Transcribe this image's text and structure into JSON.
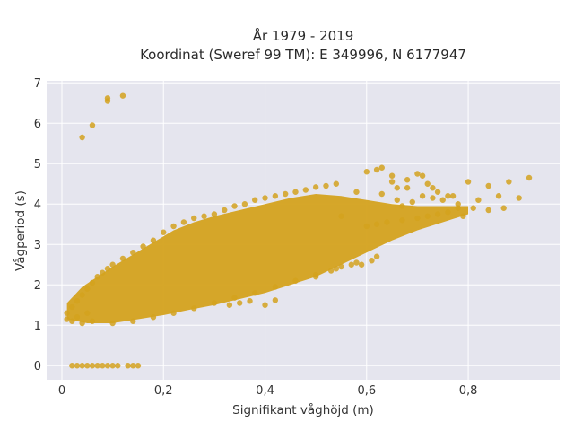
{
  "chart_data": {
    "type": "scatter",
    "title_line1": "År 1979 - 2019",
    "title_line2": "Koordinat (Sweref 99 TM): E 349996, N 6177947",
    "xlabel": "Signifikant våghöjd (m)",
    "ylabel": "Vågperiod (s)",
    "xlim": [
      -0.03,
      0.98
    ],
    "ylim": [
      -0.35,
      7.05
    ],
    "x_ticks": [
      0,
      0.2,
      0.4,
      0.6,
      0.8
    ],
    "x_tick_labels": [
      "0",
      "0,2",
      "0,4",
      "0,6",
      "0,8"
    ],
    "y_ticks": [
      0,
      1,
      2,
      3,
      4,
      5,
      6,
      7
    ],
    "y_tick_labels": [
      "0",
      "1",
      "2",
      "3",
      "4",
      "5",
      "6",
      "7"
    ],
    "grid": true,
    "colors": {
      "marker": "#D4A21E",
      "plot_bg": "#E5E5EE",
      "grid": "#FFFFFF"
    },
    "points": [
      [
        0.04,
        5.65
      ],
      [
        0.06,
        5.95
      ],
      [
        0.09,
        6.55
      ],
      [
        0.09,
        6.62
      ],
      [
        0.12,
        6.68
      ],
      [
        0.02,
        0
      ],
      [
        0.03,
        0
      ],
      [
        0.04,
        0
      ],
      [
        0.05,
        0
      ],
      [
        0.06,
        0
      ],
      [
        0.07,
        0
      ],
      [
        0.08,
        0
      ],
      [
        0.09,
        0
      ],
      [
        0.1,
        0
      ],
      [
        0.11,
        0
      ],
      [
        0.13,
        0
      ],
      [
        0.14,
        0
      ],
      [
        0.15,
        0
      ],
      [
        0.01,
        1.15
      ],
      [
        0.01,
        1.3
      ],
      [
        0.02,
        1.1
      ],
      [
        0.02,
        1.45
      ],
      [
        0.03,
        1.2
      ],
      [
        0.03,
        1.6
      ],
      [
        0.04,
        1.05
      ],
      [
        0.04,
        1.75
      ],
      [
        0.05,
        1.3
      ],
      [
        0.05,
        1.9
      ],
      [
        0.06,
        2.05
      ],
      [
        0.06,
        1.1
      ],
      [
        0.07,
        2.2
      ],
      [
        0.08,
        2.3
      ],
      [
        0.09,
        2.4
      ],
      [
        0.1,
        2.5
      ],
      [
        0.12,
        2.65
      ],
      [
        0.14,
        2.8
      ],
      [
        0.16,
        2.95
      ],
      [
        0.18,
        3.1
      ],
      [
        0.2,
        3.3
      ],
      [
        0.22,
        3.45
      ],
      [
        0.24,
        3.55
      ],
      [
        0.26,
        3.65
      ],
      [
        0.28,
        3.7
      ],
      [
        0.3,
        3.75
      ],
      [
        0.32,
        3.85
      ],
      [
        0.34,
        3.95
      ],
      [
        0.36,
        4.0
      ],
      [
        0.38,
        4.1
      ],
      [
        0.4,
        4.15
      ],
      [
        0.42,
        4.2
      ],
      [
        0.44,
        4.25
      ],
      [
        0.46,
        4.3
      ],
      [
        0.48,
        4.35
      ],
      [
        0.5,
        4.42
      ],
      [
        0.52,
        4.45
      ],
      [
        0.54,
        4.5
      ],
      [
        0.1,
        1.05
      ],
      [
        0.14,
        1.1
      ],
      [
        0.18,
        1.2
      ],
      [
        0.22,
        1.3
      ],
      [
        0.26,
        1.42
      ],
      [
        0.3,
        1.55
      ],
      [
        0.34,
        1.68
      ],
      [
        0.38,
        1.8
      ],
      [
        0.42,
        1.95
      ],
      [
        0.46,
        2.1
      ],
      [
        0.5,
        2.25
      ],
      [
        0.54,
        2.4
      ],
      [
        0.58,
        2.55
      ],
      [
        0.62,
        2.7
      ],
      [
        0.33,
        1.5
      ],
      [
        0.35,
        1.55
      ],
      [
        0.37,
        1.6
      ],
      [
        0.4,
        1.5
      ],
      [
        0.42,
        1.62
      ],
      [
        0.5,
        2.2
      ],
      [
        0.53,
        2.35
      ],
      [
        0.55,
        2.45
      ],
      [
        0.57,
        2.5
      ],
      [
        0.59,
        2.5
      ],
      [
        0.61,
        2.6
      ],
      [
        0.55,
        3.7
      ],
      [
        0.58,
        4.3
      ],
      [
        0.6,
        4.8
      ],
      [
        0.62,
        4.85
      ],
      [
        0.63,
        4.9
      ],
      [
        0.65,
        4.7
      ],
      [
        0.66,
        4.4
      ],
      [
        0.68,
        4.6
      ],
      [
        0.7,
        4.75
      ],
      [
        0.72,
        4.5
      ],
      [
        0.74,
        4.3
      ],
      [
        0.76,
        4.2
      ],
      [
        0.78,
        4.0
      ],
      [
        0.8,
        4.55
      ],
      [
        0.82,
        4.1
      ],
      [
        0.84,
        4.45
      ],
      [
        0.86,
        4.2
      ],
      [
        0.88,
        4.55
      ],
      [
        0.9,
        4.15
      ],
      [
        0.92,
        4.65
      ],
      [
        0.81,
        3.9
      ],
      [
        0.79,
        3.7
      ],
      [
        0.84,
        3.85
      ],
      [
        0.87,
        3.9
      ],
      [
        0.7,
        3.65
      ],
      [
        0.72,
        3.7
      ],
      [
        0.74,
        3.75
      ],
      [
        0.76,
        3.8
      ],
      [
        0.78,
        3.9
      ],
      [
        0.67,
        3.6
      ],
      [
        0.64,
        3.55
      ],
      [
        0.62,
        3.5
      ],
      [
        0.6,
        3.45
      ],
      [
        0.66,
        4.1
      ],
      [
        0.69,
        4.05
      ],
      [
        0.71,
        4.2
      ],
      [
        0.73,
        4.15
      ],
      [
        0.75,
        4.1
      ],
      [
        0.77,
        4.2
      ],
      [
        0.68,
        4.4
      ],
      [
        0.71,
        4.7
      ],
      [
        0.73,
        4.4
      ],
      [
        0.65,
        4.55
      ],
      [
        0.63,
        4.25
      ],
      [
        0.67,
        3.95
      ]
    ]
  }
}
